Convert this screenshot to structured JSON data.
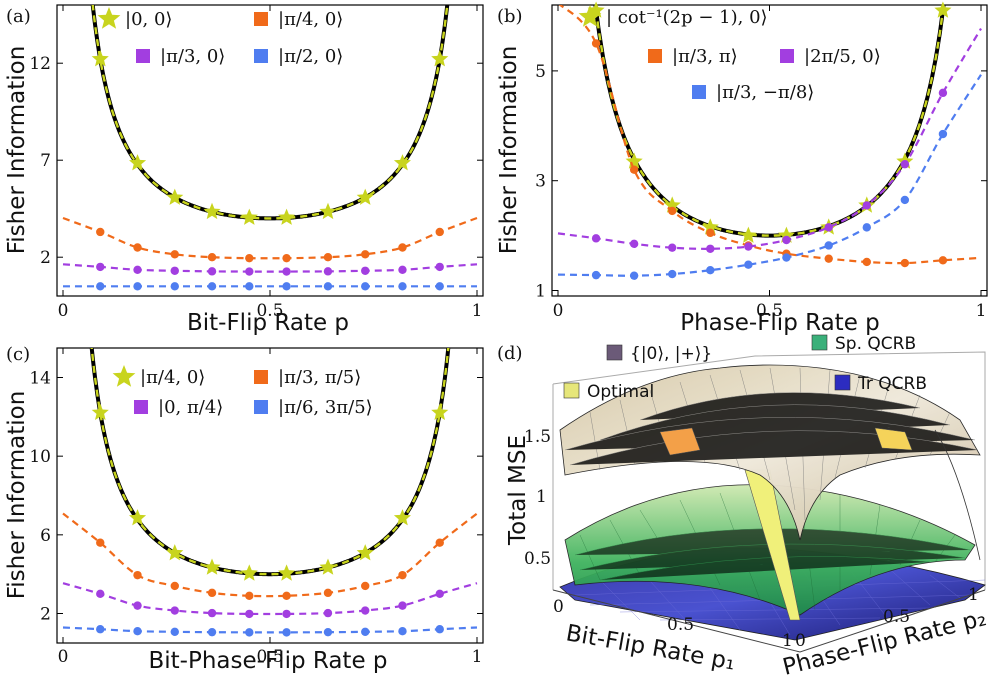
{
  "colors": {
    "yellow": "#c8d41e",
    "orange": "#f06a1a",
    "purple": "#a23ee0",
    "blue": "#4f7df0",
    "black": "#000000"
  },
  "chart_data": [
    {
      "panel": "(a)",
      "type": "line",
      "xlabel": "Bit-Flip Rate p",
      "ylabel": "Fisher Information",
      "xlim": [
        0,
        1
      ],
      "ylim": [
        0,
        15
      ],
      "xticks": [
        {
          "v": 0,
          "t": "0"
        },
        {
          "v": 0.5,
          "t": "0.5"
        },
        {
          "v": 1,
          "t": "1"
        }
      ],
      "yticks": [
        {
          "v": 2,
          "t": "2"
        },
        {
          "v": 7,
          "t": "7"
        },
        {
          "v": 12,
          "t": "12"
        }
      ],
      "legend": [
        "|0, 0⟩",
        "|π/4, 0⟩",
        "|π/3, 0⟩",
        "|π/2, 0⟩"
      ],
      "series": [
        {
          "name": "|0, 0⟩",
          "color": "yellow",
          "marker": "star",
          "x": [
            0.09,
            0.18,
            0.27,
            0.36,
            0.45,
            0.54,
            0.64,
            0.73,
            0.82,
            0.91
          ],
          "y": [
            12.21,
            6.85,
            5.07,
            4.34,
            4.04,
            4.04,
            4.34,
            5.07,
            6.85,
            12.21
          ]
        },
        {
          "name": "|π/4, 0⟩",
          "color": "orange",
          "marker": "square",
          "x": [
            0.09,
            0.18,
            0.27,
            0.36,
            0.45,
            0.54,
            0.64,
            0.73,
            0.82,
            0.91
          ],
          "y": [
            3.3,
            2.5,
            2.15,
            2.0,
            1.95,
            1.95,
            2.0,
            2.15,
            2.5,
            3.3
          ]
        },
        {
          "name": "|π/3, 0⟩",
          "color": "purple",
          "marker": "square",
          "x": [
            0.09,
            0.18,
            0.27,
            0.36,
            0.45,
            0.54,
            0.64,
            0.73,
            0.82,
            0.91
          ],
          "y": [
            1.5,
            1.35,
            1.3,
            1.27,
            1.26,
            1.26,
            1.27,
            1.3,
            1.35,
            1.5
          ]
        },
        {
          "name": "|π/2, 0⟩",
          "color": "blue",
          "marker": "square",
          "x": [
            0.09,
            0.18,
            0.27,
            0.36,
            0.45,
            0.54,
            0.64,
            0.73,
            0.82,
            0.91
          ],
          "y": [
            0.5,
            0.5,
            0.5,
            0.5,
            0.5,
            0.5,
            0.5,
            0.5,
            0.5,
            0.5
          ]
        }
      ]
    },
    {
      "panel": "(b)",
      "type": "line",
      "xlabel": "Phase-Flip Rate p",
      "ylabel": "Fisher Information",
      "xlim": [
        0,
        1
      ],
      "ylim": [
        0.9,
        6.2
      ],
      "xticks": [
        {
          "v": 0,
          "t": "0"
        },
        {
          "v": 0.5,
          "t": "0.5"
        },
        {
          "v": 1,
          "t": "1"
        }
      ],
      "yticks": [
        {
          "v": 1,
          "t": "1"
        },
        {
          "v": 3,
          "t": "3"
        },
        {
          "v": 5,
          "t": "5"
        }
      ],
      "legend": [
        "| cot⁻¹(2p − 1), 0⟩",
        "|π/3, π⟩",
        "|2π/5, 0⟩",
        "|π/3, −π/8⟩"
      ],
      "series": [
        {
          "name": "| cot⁻¹(2p − 1), 0⟩",
          "color": "yellow",
          "marker": "star",
          "x": [
            0.09,
            0.18,
            0.27,
            0.36,
            0.45,
            0.54,
            0.64,
            0.73,
            0.82,
            0.91
          ],
          "y": [
            6.1,
            3.35,
            2.55,
            2.15,
            2.0,
            2.0,
            2.15,
            2.55,
            3.35,
            6.1
          ]
        },
        {
          "name": "|π/3, π⟩",
          "color": "orange",
          "marker": "square",
          "x": [
            0.09,
            0.18,
            0.27,
            0.36,
            0.45,
            0.54,
            0.64,
            0.73,
            0.82,
            0.91
          ],
          "y": [
            5.5,
            3.2,
            2.45,
            2.05,
            1.82,
            1.67,
            1.58,
            1.52,
            1.5,
            1.55
          ]
        },
        {
          "name": "|2π/5, 0⟩",
          "color": "purple",
          "marker": "square",
          "x": [
            0.09,
            0.18,
            0.27,
            0.36,
            0.45,
            0.54,
            0.64,
            0.73,
            0.82,
            0.91
          ],
          "y": [
            1.95,
            1.85,
            1.78,
            1.76,
            1.8,
            1.92,
            2.15,
            2.55,
            3.3,
            4.6
          ]
        },
        {
          "name": "|π/3, −π/8⟩",
          "color": "blue",
          "marker": "square",
          "x": [
            0.09,
            0.18,
            0.27,
            0.36,
            0.45,
            0.54,
            0.64,
            0.73,
            0.82,
            0.91
          ],
          "y": [
            1.28,
            1.27,
            1.3,
            1.37,
            1.47,
            1.6,
            1.82,
            2.15,
            2.65,
            3.85
          ]
        }
      ]
    },
    {
      "panel": "(c)",
      "type": "line",
      "xlabel": "Bit-Phase-Flip Rate p",
      "ylabel": "Fisher Information",
      "xlim": [
        0,
        1
      ],
      "ylim": [
        0.5,
        15.5
      ],
      "xticks": [
        {
          "v": 0,
          "t": "0"
        },
        {
          "v": 0.5,
          "t": "0.5"
        },
        {
          "v": 1,
          "t": "1"
        }
      ],
      "yticks": [
        {
          "v": 2,
          "t": "2"
        },
        {
          "v": 6,
          "t": "6"
        },
        {
          "v": 10,
          "t": "10"
        },
        {
          "v": 14,
          "t": "14"
        }
      ],
      "legend": [
        "|π/4, 0⟩",
        "|π/3, π/5⟩",
        "|0, π/4⟩",
        "|π/6, 3π/5⟩"
      ],
      "series": [
        {
          "name": "|π/4, 0⟩",
          "color": "yellow",
          "marker": "star",
          "x": [
            0.09,
            0.18,
            0.27,
            0.36,
            0.45,
            0.54,
            0.64,
            0.73,
            0.82,
            0.91
          ],
          "y": [
            12.21,
            6.85,
            5.07,
            4.34,
            4.04,
            4.04,
            4.34,
            5.07,
            6.85,
            12.21
          ]
        },
        {
          "name": "|π/3, π/5⟩",
          "color": "orange",
          "marker": "square",
          "x": [
            0.09,
            0.18,
            0.27,
            0.36,
            0.45,
            0.54,
            0.64,
            0.73,
            0.82,
            0.91
          ],
          "y": [
            5.6,
            3.95,
            3.4,
            3.05,
            2.9,
            2.9,
            3.05,
            3.4,
            3.95,
            5.6
          ]
        },
        {
          "name": "|0, π/4⟩",
          "color": "purple",
          "marker": "square",
          "x": [
            0.09,
            0.18,
            0.27,
            0.36,
            0.45,
            0.54,
            0.64,
            0.73,
            0.82,
            0.91
          ],
          "y": [
            3.0,
            2.4,
            2.15,
            2.02,
            1.98,
            1.98,
            2.02,
            2.15,
            2.4,
            3.0
          ]
        },
        {
          "name": "|π/6, 3π/5⟩",
          "color": "blue",
          "marker": "square",
          "x": [
            0.09,
            0.18,
            0.27,
            0.36,
            0.45,
            0.54,
            0.64,
            0.73,
            0.82,
            0.91
          ],
          "y": [
            1.2,
            1.1,
            1.07,
            1.05,
            1.04,
            1.04,
            1.05,
            1.07,
            1.1,
            1.2
          ]
        }
      ]
    },
    {
      "panel": "(d)",
      "type": "surface",
      "zlabel": "Total MSE",
      "xlabel": "Bit-Flip Rate p₁",
      "ylabel": "Phase-Flip Rate p₂",
      "zticks": [
        {
          "v": 0.5,
          "t": "0.5"
        },
        {
          "v": 1,
          "t": "1"
        },
        {
          "v": 1.5,
          "t": "1.5"
        }
      ],
      "xticks": [
        {
          "v": 0,
          "t": "0"
        },
        {
          "v": 0.5,
          "t": "0.5"
        },
        {
          "v": 1,
          "t": "1"
        }
      ],
      "yticks": [
        {
          "v": 0,
          "t": "0"
        },
        {
          "v": 0.5,
          "t": "0.5"
        },
        {
          "v": 1,
          "t": "1"
        }
      ],
      "legend": [
        "{|0⟩, |+⟩}",
        "Sp. QCRB",
        "Optimal",
        "Tr QCRB"
      ]
    }
  ]
}
